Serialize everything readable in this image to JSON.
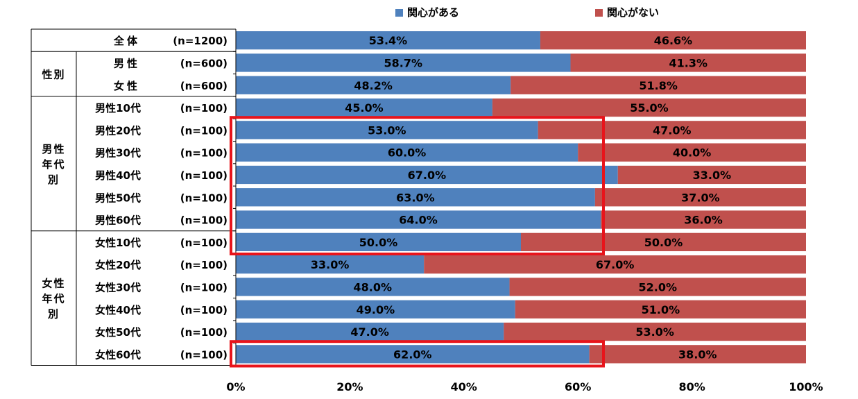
{
  "chart_data": {
    "type": "bar",
    "orientation": "horizontal-stacked-100",
    "legend": {
      "placement": "top",
      "items": [
        {
          "name": "関心がある",
          "color": "#4F81BD"
        },
        {
          "name": "関心がない",
          "color": "#C0504D"
        }
      ]
    },
    "groups": [
      {
        "label": "",
        "rows": [
          0
        ]
      },
      {
        "label": "性別",
        "rows": [
          1,
          2
        ]
      },
      {
        "label": "男性年代別",
        "lines": [
          "男性",
          "年代",
          "別"
        ],
        "rows": [
          3,
          4,
          5,
          6,
          7,
          8
        ]
      },
      {
        "label": "女性年代別",
        "lines": [
          "女性",
          "年代",
          "別"
        ],
        "rows": [
          9,
          10,
          11,
          12,
          13,
          14
        ]
      }
    ],
    "categories": [
      "全体",
      "男性",
      "女性",
      "男性10代",
      "男性20代",
      "男性30代",
      "男性40代",
      "男性50代",
      "男性60代",
      "女性10代",
      "女性20代",
      "女性30代",
      "女性40代",
      "女性50代",
      "女性60代"
    ],
    "n": [
      "(n=1200)",
      "(n=600)",
      "(n=600)",
      "(n=100)",
      "(n=100)",
      "(n=100)",
      "(n=100)",
      "(n=100)",
      "(n=100)",
      "(n=100)",
      "(n=100)",
      "(n=100)",
      "(n=100)",
      "(n=100)",
      "(n=100)"
    ],
    "series": [
      {
        "name": "関心がある",
        "color": "#4F81BD",
        "values": [
          53.4,
          58.7,
          48.2,
          45.0,
          53.0,
          60.0,
          67.0,
          63.0,
          64.0,
          50.0,
          33.0,
          48.0,
          49.0,
          47.0,
          62.0
        ]
      },
      {
        "name": "関心がない",
        "color": "#C0504D",
        "values": [
          46.6,
          41.3,
          51.8,
          55.0,
          47.0,
          40.0,
          33.0,
          37.0,
          36.0,
          50.0,
          67.0,
          52.0,
          51.0,
          53.0,
          38.0
        ]
      }
    ],
    "xticks": [
      "0%",
      "20%",
      "40%",
      "60%",
      "80%",
      "100%"
    ],
    "xlim": [
      0,
      100
    ],
    "highlights": [
      {
        "rows": [
          4,
          9
        ],
        "color": "#E8141B"
      },
      {
        "rows": [
          14,
          14
        ],
        "color": "#E8141B"
      }
    ]
  }
}
